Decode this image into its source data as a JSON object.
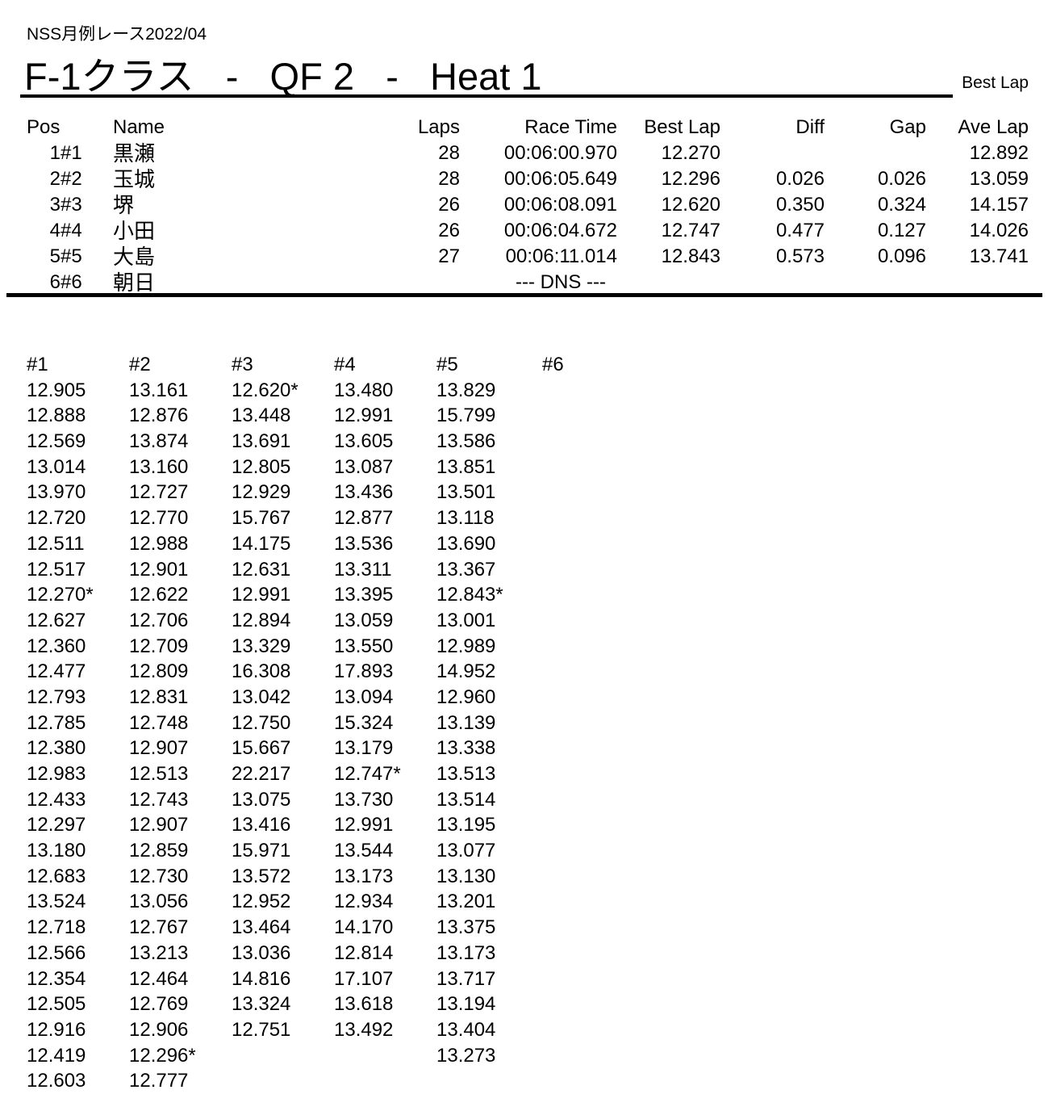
{
  "page": {
    "event_title": "NSS月例レース2022/04",
    "heat_title": "F-1クラス   -   QF 2   -   Heat 1",
    "best_lap_label": "Best Lap"
  },
  "results": {
    "headers": [
      "Pos",
      "",
      "Name",
      "Laps",
      "Race Time",
      "Best Lap",
      "Diff",
      "Gap",
      "Ave Lap"
    ],
    "rows": [
      {
        "pos": "1",
        "num": "#1",
        "name": "黒瀬",
        "laps": "28",
        "race_time": "00:06:00.970",
        "best_lap": "12.270",
        "diff": "",
        "gap": "",
        "ave_lap": "12.892",
        "dns": false
      },
      {
        "pos": "2",
        "num": "#2",
        "name": "玉城",
        "laps": "28",
        "race_time": "00:06:05.649",
        "best_lap": "12.296",
        "diff": "0.026",
        "gap": "0.026",
        "ave_lap": "13.059",
        "dns": false
      },
      {
        "pos": "3",
        "num": "#3",
        "name": "堺",
        "laps": "26",
        "race_time": "00:06:08.091",
        "best_lap": "12.620",
        "diff": "0.350",
        "gap": "0.324",
        "ave_lap": "14.157",
        "dns": false
      },
      {
        "pos": "4",
        "num": "#4",
        "name": "小田",
        "laps": "26",
        "race_time": "00:06:04.672",
        "best_lap": "12.747",
        "diff": "0.477",
        "gap": "0.127",
        "ave_lap": "14.026",
        "dns": false
      },
      {
        "pos": "5",
        "num": "#5",
        "name": "大島",
        "laps": "27",
        "race_time": "00:06:11.014",
        "best_lap": "12.843",
        "diff": "0.573",
        "gap": "0.096",
        "ave_lap": "13.741",
        "dns": false
      },
      {
        "pos": "6",
        "num": "#6",
        "name": "朝日",
        "laps": "",
        "race_time": "--- DNS ---",
        "best_lap": "",
        "diff": "",
        "gap": "",
        "ave_lap": "",
        "dns": true
      }
    ]
  },
  "lap_chart": {
    "columns": [
      {
        "header": "#1",
        "laps": [
          "12.905",
          "12.888",
          "12.569",
          "13.014",
          "13.970",
          "12.720",
          "12.511",
          "12.517",
          "12.270*",
          "12.627",
          "12.360",
          "12.477",
          "12.793",
          "12.785",
          "12.380",
          "12.983",
          "12.433",
          "12.297",
          "13.180",
          "12.683",
          "13.524",
          "12.718",
          "12.566",
          "12.354",
          "12.505",
          "12.916",
          "12.419",
          "12.603"
        ]
      },
      {
        "header": "#2",
        "laps": [
          "13.161",
          "12.876",
          "13.874",
          "13.160",
          "12.727",
          "12.770",
          "12.988",
          "12.901",
          "12.622",
          "12.706",
          "12.709",
          "12.809",
          "12.831",
          "12.748",
          "12.907",
          "12.513",
          "12.743",
          "12.907",
          "12.859",
          "12.730",
          "13.056",
          "12.767",
          "13.213",
          "12.464",
          "12.769",
          "12.906",
          "12.296*",
          "12.777"
        ]
      },
      {
        "header": "#3",
        "laps": [
          "12.620*",
          "13.448",
          "13.691",
          "12.805",
          "12.929",
          "15.767",
          "14.175",
          "12.631",
          "12.991",
          "12.894",
          "13.329",
          "16.308",
          "13.042",
          "12.750",
          "15.667",
          "22.217",
          "13.075",
          "13.416",
          "15.971",
          "13.572",
          "12.952",
          "13.464",
          "13.036",
          "14.816",
          "13.324",
          "12.751"
        ]
      },
      {
        "header": "#4",
        "laps": [
          "13.480",
          "12.991",
          "13.605",
          "13.087",
          "13.436",
          "12.877",
          "13.536",
          "13.311",
          "13.395",
          "13.059",
          "13.550",
          "17.893",
          "13.094",
          "15.324",
          "13.179",
          "12.747*",
          "13.730",
          "12.991",
          "13.544",
          "13.173",
          "12.934",
          "14.170",
          "12.814",
          "17.107",
          "13.618",
          "13.492"
        ]
      },
      {
        "header": "#5",
        "laps": [
          "13.829",
          "15.799",
          "13.586",
          "13.851",
          "13.501",
          "13.118",
          "13.690",
          "13.367",
          "12.843*",
          "13.001",
          "12.989",
          "14.952",
          "12.960",
          "13.139",
          "13.338",
          "13.513",
          "13.514",
          "13.195",
          "13.077",
          "13.130",
          "13.201",
          "13.375",
          "13.173",
          "13.717",
          "13.194",
          "13.404",
          "13.273"
        ]
      },
      {
        "header": "#6",
        "laps": []
      }
    ]
  }
}
